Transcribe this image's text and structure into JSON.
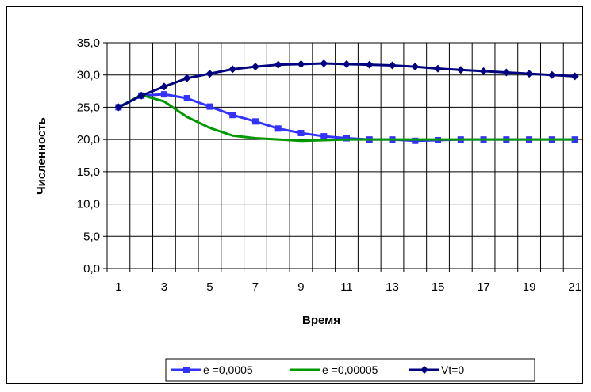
{
  "chart_data": {
    "type": "line",
    "title": "",
    "xlabel": "Время",
    "ylabel": "Численность",
    "x": [
      1,
      2,
      3,
      4,
      5,
      6,
      7,
      8,
      9,
      10,
      11,
      12,
      13,
      14,
      15,
      16,
      17,
      18,
      19,
      20,
      21
    ],
    "x_tick_labels": [
      "1",
      "3",
      "5",
      "7",
      "9",
      "11",
      "13",
      "15",
      "17",
      "19",
      "21"
    ],
    "y_tick_labels": [
      "0,0",
      "5,0",
      "10,0",
      "15,0",
      "20,0",
      "25,0",
      "30,0",
      "35,0"
    ],
    "ylim": [
      0,
      35
    ],
    "xlim": [
      0.5,
      21.5
    ],
    "grid": true,
    "legend_position": "bottom",
    "series": [
      {
        "name": "e =0,0005",
        "color": "#3333ff",
        "marker": "square",
        "values": [
          25.0,
          26.8,
          27.0,
          26.4,
          25.1,
          23.8,
          22.8,
          21.7,
          21.0,
          20.5,
          20.2,
          20.0,
          20.0,
          19.8,
          19.9,
          20.0,
          20.0,
          20.0,
          20.0,
          20.0,
          20.0
        ]
      },
      {
        "name": "e =0,00005",
        "color": "#009900",
        "marker": "none",
        "values": [
          25.0,
          26.9,
          25.9,
          23.5,
          21.8,
          20.6,
          20.2,
          20.0,
          19.8,
          19.9,
          20.0,
          20.0,
          20.0,
          20.0,
          20.0,
          20.0,
          20.0,
          20.0,
          20.0,
          20.0,
          20.0
        ]
      },
      {
        "name": "Vt=0",
        "color": "#000080",
        "marker": "diamond",
        "values": [
          25.0,
          26.8,
          28.2,
          29.5,
          30.2,
          30.9,
          31.3,
          31.6,
          31.7,
          31.8,
          31.7,
          31.6,
          31.5,
          31.3,
          31.0,
          30.8,
          30.6,
          30.4,
          30.2,
          30.0,
          29.8
        ]
      }
    ]
  }
}
